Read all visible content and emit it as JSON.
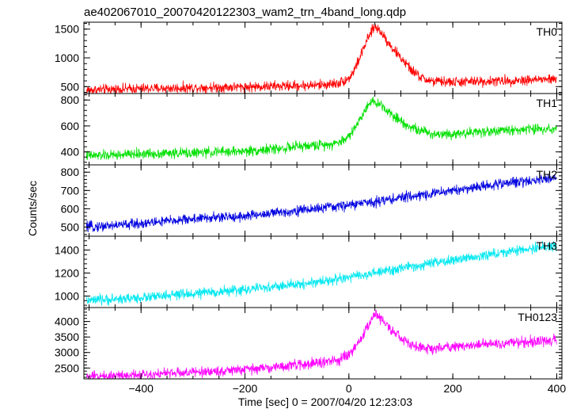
{
  "chart_data": {
    "type": "line",
    "title": "ae402067010_20070420122303_wam2_trn_4band_long.qdp",
    "xlabel": "Time [sec] 0 = 2007/04/20 12:23:03",
    "ylabel": "Counts/sec",
    "xlim": [
      -510,
      410
    ],
    "x_ticks": [
      -400,
      -200,
      0,
      200,
      400
    ],
    "x_tick_labels": [
      "−400",
      "−200",
      "0",
      "200",
      "400"
    ],
    "grid": false,
    "legend": "none",
    "panels": [
      {
        "name": "TH0",
        "color": "#ff0000",
        "ylim": [
          380,
          1620
        ],
        "y_ticks": [
          500,
          1000,
          1500
        ],
        "y_tick_labels": [
          "500",
          "1000",
          "1500"
        ],
        "x": [
          -500,
          -450,
          -400,
          -350,
          -300,
          -250,
          -200,
          -150,
          -100,
          -50,
          -20,
          0,
          10,
          20,
          30,
          40,
          50,
          60,
          70,
          80,
          100,
          120,
          140,
          160,
          200,
          250,
          300,
          350,
          400
        ],
        "y": [
          440,
          455,
          465,
          470,
          480,
          490,
          495,
          505,
          515,
          530,
          560,
          640,
          780,
          980,
          1200,
          1400,
          1550,
          1470,
          1350,
          1210,
          1000,
          790,
          650,
          590,
          580,
          590,
          600,
          620,
          630
        ]
      },
      {
        "name": "TH1",
        "color": "#00e000",
        "ylim": [
          300,
          850
        ],
        "y_ticks": [
          400,
          600,
          800
        ],
        "y_tick_labels": [
          "400",
          "600",
          "800"
        ],
        "x": [
          -500,
          -450,
          -400,
          -350,
          -300,
          -250,
          -200,
          -150,
          -100,
          -50,
          -20,
          0,
          20,
          40,
          60,
          80,
          100,
          120,
          140,
          160,
          200,
          250,
          300,
          350,
          400
        ],
        "y": [
          370,
          375,
          385,
          390,
          392,
          400,
          405,
          420,
          440,
          455,
          470,
          520,
          640,
          790,
          770,
          700,
          640,
          590,
          560,
          540,
          540,
          555,
          565,
          575,
          580
        ]
      },
      {
        "name": "TH2",
        "color": "#0000e0",
        "ylim": [
          450,
          840
        ],
        "y_ticks": [
          500,
          600,
          700,
          800
        ],
        "y_tick_labels": [
          "500",
          "600",
          "700",
          "800"
        ],
        "x": [
          -500,
          -400,
          -300,
          -200,
          -100,
          0,
          100,
          200,
          300,
          400
        ],
        "y": [
          500,
          520,
          545,
          560,
          590,
          620,
          660,
          700,
          740,
          770
        ]
      },
      {
        "name": "TH3",
        "color": "#00e8f0",
        "ylim": [
          900,
          1520
        ],
        "y_ticks": [
          1000,
          1200,
          1400
        ],
        "y_tick_labels": [
          "1000",
          "1200",
          "1400"
        ],
        "x": [
          -500,
          -400,
          -300,
          -200,
          -100,
          0,
          100,
          200,
          300,
          400
        ],
        "y": [
          960,
          985,
          1020,
          1055,
          1100,
          1160,
          1240,
          1310,
          1380,
          1440
        ]
      },
      {
        "name": "TH0123",
        "color": "#ff00ff",
        "ylim": [
          2150,
          4450
        ],
        "y_ticks": [
          2500,
          3000,
          3500,
          4000
        ],
        "y_tick_labels": [
          "2500",
          "3000",
          "3500",
          "4000"
        ],
        "x": [
          -500,
          -450,
          -400,
          -350,
          -300,
          -250,
          -200,
          -150,
          -100,
          -50,
          -20,
          0,
          20,
          40,
          50,
          60,
          80,
          100,
          120,
          140,
          160,
          200,
          250,
          300,
          350,
          400
        ],
        "y": [
          2230,
          2260,
          2300,
          2330,
          2360,
          2400,
          2450,
          2520,
          2600,
          2680,
          2760,
          2900,
          3350,
          3950,
          4280,
          4120,
          3750,
          3450,
          3250,
          3150,
          3120,
          3200,
          3250,
          3300,
          3350,
          3400
        ]
      }
    ]
  }
}
